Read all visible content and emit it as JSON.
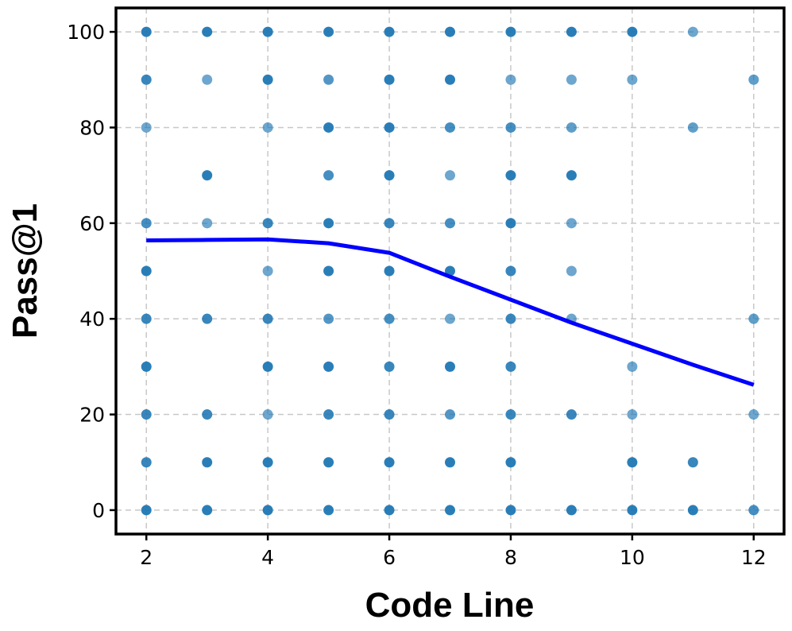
{
  "chart_data": {
    "type": "scatter",
    "xlabel": "Code Line",
    "ylabel": "Pass@1",
    "xlim": [
      1.5,
      12.5
    ],
    "ylim": [
      -5,
      105
    ],
    "xticks": [
      2,
      4,
      6,
      8,
      10,
      12
    ],
    "yticks": [
      0,
      20,
      40,
      60,
      80,
      100
    ],
    "grid": true,
    "point_color": "#1f77b4",
    "line_color": "#0000ff",
    "points": [
      {
        "x": 2,
        "y": 100,
        "d": 1
      },
      {
        "x": 2,
        "y": 90,
        "d": 0.9
      },
      {
        "x": 2,
        "y": 80,
        "d": 0.5
      },
      {
        "x": 2,
        "y": 60,
        "d": 0.8
      },
      {
        "x": 2,
        "y": 50,
        "d": 1
      },
      {
        "x": 2,
        "y": 40,
        "d": 0.9
      },
      {
        "x": 2,
        "y": 30,
        "d": 1
      },
      {
        "x": 2,
        "y": 20,
        "d": 0.9
      },
      {
        "x": 2,
        "y": 10,
        "d": 0.9
      },
      {
        "x": 2,
        "y": 0,
        "d": 1
      },
      {
        "x": 3,
        "y": 100,
        "d": 1
      },
      {
        "x": 3,
        "y": 90,
        "d": 0.5
      },
      {
        "x": 3,
        "y": 70,
        "d": 1
      },
      {
        "x": 3,
        "y": 60,
        "d": 0.5
      },
      {
        "x": 3,
        "y": 40,
        "d": 0.9
      },
      {
        "x": 3,
        "y": 20,
        "d": 0.9
      },
      {
        "x": 3,
        "y": 10,
        "d": 1
      },
      {
        "x": 3,
        "y": 0,
        "d": 1
      },
      {
        "x": 4,
        "y": 100,
        "d": 1
      },
      {
        "x": 4,
        "y": 90,
        "d": 1
      },
      {
        "x": 4,
        "y": 80,
        "d": 0.5
      },
      {
        "x": 4,
        "y": 60,
        "d": 0.9
      },
      {
        "x": 4,
        "y": 50,
        "d": 0.5
      },
      {
        "x": 4,
        "y": 40,
        "d": 0.9
      },
      {
        "x": 4,
        "y": 30,
        "d": 1
      },
      {
        "x": 4,
        "y": 20,
        "d": 0.5
      },
      {
        "x": 4,
        "y": 10,
        "d": 1
      },
      {
        "x": 4,
        "y": 0,
        "d": 1
      },
      {
        "x": 5,
        "y": 100,
        "d": 1
      },
      {
        "x": 5,
        "y": 90,
        "d": 0.7
      },
      {
        "x": 5,
        "y": 80,
        "d": 1
      },
      {
        "x": 5,
        "y": 70,
        "d": 0.8
      },
      {
        "x": 5,
        "y": 60,
        "d": 1
      },
      {
        "x": 5,
        "y": 50,
        "d": 1
      },
      {
        "x": 5,
        "y": 40,
        "d": 0.7
      },
      {
        "x": 5,
        "y": 30,
        "d": 1
      },
      {
        "x": 5,
        "y": 20,
        "d": 0.9
      },
      {
        "x": 5,
        "y": 10,
        "d": 1
      },
      {
        "x": 5,
        "y": 0,
        "d": 1
      },
      {
        "x": 6,
        "y": 100,
        "d": 1
      },
      {
        "x": 6,
        "y": 90,
        "d": 1
      },
      {
        "x": 6,
        "y": 80,
        "d": 1
      },
      {
        "x": 6,
        "y": 70,
        "d": 1
      },
      {
        "x": 6,
        "y": 60,
        "d": 0.9
      },
      {
        "x": 6,
        "y": 50,
        "d": 1
      },
      {
        "x": 6,
        "y": 40,
        "d": 0.8
      },
      {
        "x": 6,
        "y": 30,
        "d": 0.9
      },
      {
        "x": 6,
        "y": 20,
        "d": 0.9
      },
      {
        "x": 6,
        "y": 10,
        "d": 1
      },
      {
        "x": 6,
        "y": 0,
        "d": 1
      },
      {
        "x": 7,
        "y": 100,
        "d": 1
      },
      {
        "x": 7,
        "y": 90,
        "d": 1
      },
      {
        "x": 7,
        "y": 80,
        "d": 0.8
      },
      {
        "x": 7,
        "y": 70,
        "d": 0.5
      },
      {
        "x": 7,
        "y": 60,
        "d": 0.8
      },
      {
        "x": 7,
        "y": 50,
        "d": 1
      },
      {
        "x": 7,
        "y": 40,
        "d": 0.5
      },
      {
        "x": 7,
        "y": 30,
        "d": 1
      },
      {
        "x": 7,
        "y": 20,
        "d": 0.7
      },
      {
        "x": 7,
        "y": 10,
        "d": 1
      },
      {
        "x": 7,
        "y": 0,
        "d": 1
      },
      {
        "x": 8,
        "y": 100,
        "d": 1
      },
      {
        "x": 8,
        "y": 90,
        "d": 0.5
      },
      {
        "x": 8,
        "y": 80,
        "d": 0.8
      },
      {
        "x": 8,
        "y": 70,
        "d": 1
      },
      {
        "x": 8,
        "y": 60,
        "d": 1
      },
      {
        "x": 8,
        "y": 50,
        "d": 0.9
      },
      {
        "x": 8,
        "y": 40,
        "d": 0.9
      },
      {
        "x": 8,
        "y": 30,
        "d": 0.9
      },
      {
        "x": 8,
        "y": 20,
        "d": 0.9
      },
      {
        "x": 8,
        "y": 10,
        "d": 1
      },
      {
        "x": 8,
        "y": 0,
        "d": 1
      },
      {
        "x": 9,
        "y": 100,
        "d": 1
      },
      {
        "x": 9,
        "y": 90,
        "d": 0.5
      },
      {
        "x": 9,
        "y": 80,
        "d": 0.6
      },
      {
        "x": 9,
        "y": 70,
        "d": 1
      },
      {
        "x": 9,
        "y": 60,
        "d": 0.5
      },
      {
        "x": 9,
        "y": 50,
        "d": 0.5
      },
      {
        "x": 9,
        "y": 40,
        "d": 0.5
      },
      {
        "x": 9,
        "y": 20,
        "d": 0.9
      },
      {
        "x": 9,
        "y": 0,
        "d": 1
      },
      {
        "x": 10,
        "y": 100,
        "d": 1
      },
      {
        "x": 10,
        "y": 90,
        "d": 0.5
      },
      {
        "x": 10,
        "y": 30,
        "d": 0.5
      },
      {
        "x": 10,
        "y": 20,
        "d": 0.5
      },
      {
        "x": 10,
        "y": 10,
        "d": 1
      },
      {
        "x": 10,
        "y": 0,
        "d": 1
      },
      {
        "x": 11,
        "y": 100,
        "d": 0.5
      },
      {
        "x": 11,
        "y": 80,
        "d": 0.6
      },
      {
        "x": 11,
        "y": 10,
        "d": 0.9
      },
      {
        "x": 11,
        "y": 0,
        "d": 1
      },
      {
        "x": 12,
        "y": 90,
        "d": 0.6
      },
      {
        "x": 12,
        "y": 40,
        "d": 0.6
      },
      {
        "x": 12,
        "y": 20,
        "d": 0.5
      },
      {
        "x": 12,
        "y": 0,
        "d": 0.8
      }
    ],
    "trend_line": {
      "x": [
        2,
        3,
        4,
        5,
        6,
        7,
        8,
        9,
        10,
        11,
        12
      ],
      "y": [
        56.4,
        56.5,
        56.6,
        55.8,
        53.8,
        48.8,
        44.0,
        39.2,
        34.8,
        30.4,
        26.2
      ]
    }
  }
}
